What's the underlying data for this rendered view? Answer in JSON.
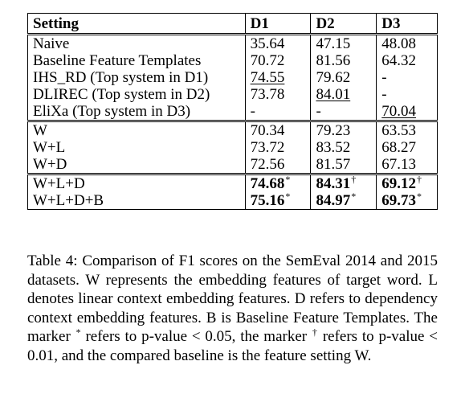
{
  "table": {
    "headers": [
      "Setting",
      "D1",
      "D2",
      "D3"
    ],
    "groups": [
      [
        [
          "Naive",
          "35.64",
          "47.15",
          "48.08"
        ],
        [
          "Baseline Feature Templates",
          "70.72",
          "81.56",
          "64.32"
        ],
        [
          "IHS_RD (Top system in D1)",
          "74.55",
          "79.62",
          "-"
        ],
        [
          "DLIREC (Top system in D2)",
          "73.78",
          "84.01",
          "-"
        ],
        [
          "EliXa (Top system in D3)",
          "-",
          "-",
          "70.04"
        ]
      ],
      [
        [
          "W",
          "70.34",
          "79.23",
          "63.53"
        ],
        [
          "W+L",
          "73.72",
          "83.52",
          "68.27"
        ],
        [
          "W+D",
          "72.56",
          "81.57",
          "67.13"
        ]
      ],
      [
        [
          "W+L+D",
          "74.68",
          "84.31",
          "69.12"
        ],
        [
          "W+L+D+B",
          "75.16",
          "84.97",
          "69.73"
        ]
      ]
    ],
    "marks": {
      "star": "*",
      "dagger": "†"
    }
  },
  "caption": {
    "label": "Table 4:",
    "text_1": " Comparison of F1 scores on the SemEval 2014 and 2015 datasets. W represents the embedding features of target word. L denotes linear context embedding features. D refers to dependency context embedding features. B is Baseline Feature Templates. The marker ",
    "star": "*",
    "text_2": " refers to p-value < 0.05, the marker ",
    "dagger": "†",
    "text_3": " refers to p-value < 0.01, and the compared baseline is the feature setting W."
  }
}
